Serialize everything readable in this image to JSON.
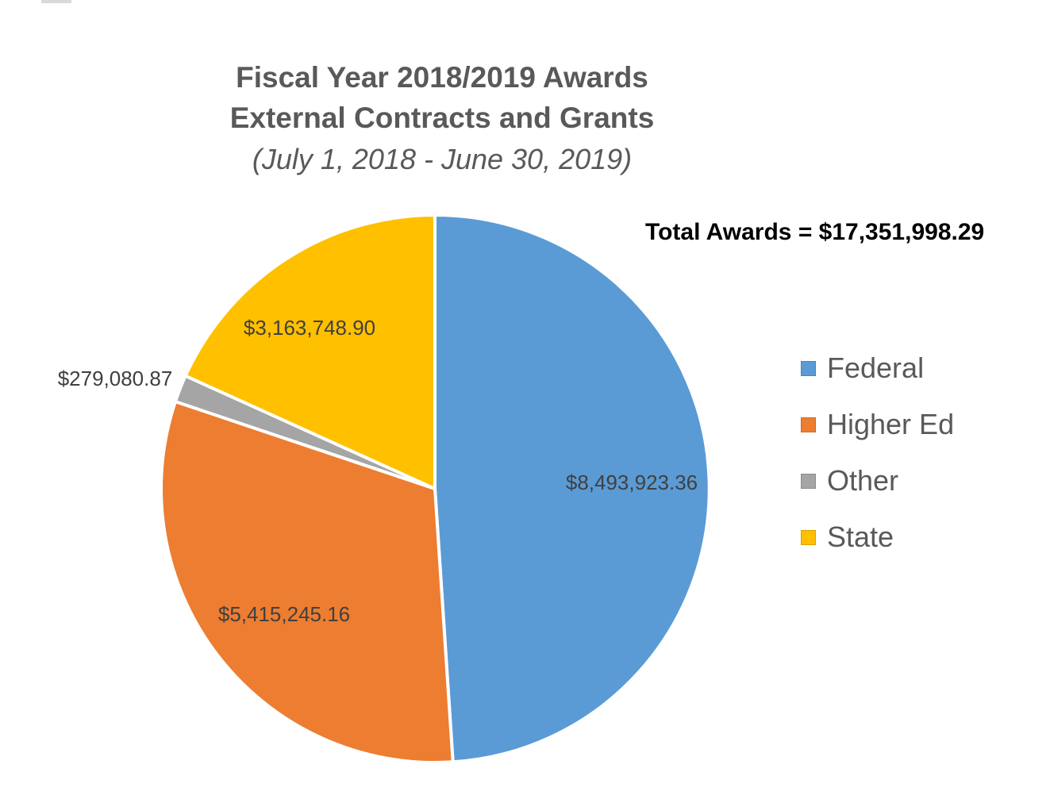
{
  "chart_data": {
    "type": "pie",
    "title_lines": [
      "Fiscal Year 2018/2019 Awards",
      "External Contracts and Grants"
    ],
    "subtitle": "(July 1, 2018 - June 30, 2019)",
    "annotation": "Total Awards = $17,351,998.29",
    "total_value": 17351998.29,
    "series": [
      {
        "name": "Federal",
        "value": 8493923.36,
        "data_label": "$8,493,923.36",
        "color": "#5B9BD5"
      },
      {
        "name": "Higher Ed",
        "value": 5415245.16,
        "data_label": "$5,415,245.16",
        "color": "#ED7D31"
      },
      {
        "name": "Other",
        "value": 279080.87,
        "data_label": "$279,080.87",
        "color": "#A5A5A5"
      },
      {
        "name": "State",
        "value": 3163748.9,
        "data_label": "$3,163,748.90",
        "color": "#FFC000"
      }
    ],
    "legend": {
      "position": "right",
      "entries": [
        "Federal",
        "Higher Ed",
        "Other",
        "State"
      ]
    },
    "start_angle_deg": 0,
    "direction": "clockwise",
    "label_color": "#404040",
    "title_color": "#595959",
    "annotation_color": "#000000"
  }
}
